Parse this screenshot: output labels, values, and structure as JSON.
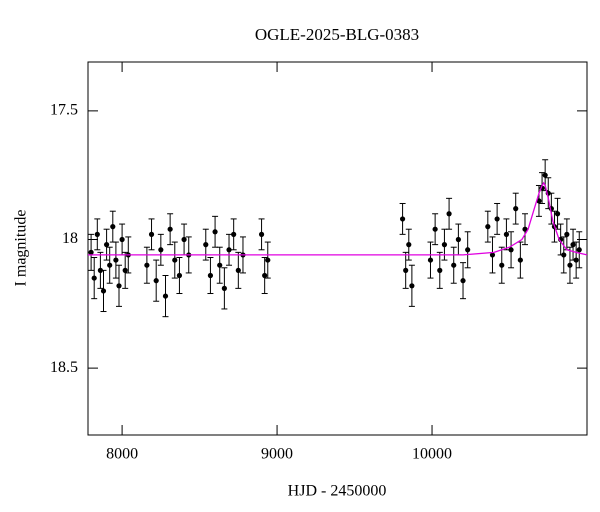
{
  "chart_data": {
    "type": "scatter",
    "title": "OGLE-2025-BLG-0383",
    "x_label": "HJD - 2450000",
    "y_label": "I magnitude",
    "xlim": [
      7780,
      11000
    ],
    "ylim": [
      18.76,
      17.31
    ],
    "y_inverted": true,
    "xticks": [
      8000,
      9000,
      10000
    ],
    "yticks": [
      17.5,
      18,
      {
        "value": 18.5,
        "label": "18.5"
      }
    ],
    "color": "#000000",
    "x": [
      7800,
      7820,
      7840,
      7860,
      7880,
      7900,
      7920,
      7940,
      7960,
      7980,
      8000,
      8020,
      8040,
      8160,
      8190,
      8220,
      8250,
      8280,
      8310,
      8340,
      8370,
      8400,
      8430,
      8540,
      8570,
      8600,
      8630,
      8660,
      8690,
      8720,
      8750,
      8780,
      8900,
      8920,
      8940,
      9810,
      9830,
      9850,
      9870,
      9990,
      10020,
      10050,
      10080,
      10110,
      10140,
      10170,
      10200,
      10230,
      10360,
      10390,
      10420,
      10450,
      10480,
      10510,
      10540,
      10570,
      10600,
      10690,
      10710,
      10730,
      10750,
      10770,
      10790,
      10810,
      10830,
      10850,
      10870,
      10890,
      10910,
      10930,
      10950
    ],
    "values": [
      18.05,
      18.15,
      17.98,
      18.12,
      18.2,
      18.02,
      18.1,
      17.95,
      18.08,
      18.18,
      18,
      18.12,
      18.06,
      18.1,
      17.98,
      18.16,
      18.04,
      18.22,
      17.96,
      18.08,
      18.14,
      18,
      18.06,
      18.02,
      18.14,
      17.97,
      18.1,
      18.19,
      18.04,
      17.98,
      18.12,
      18.06,
      17.98,
      18.14,
      18.08,
      17.92,
      18.12,
      18.02,
      18.18,
      18.08,
      17.96,
      18.12,
      18.02,
      17.9,
      18.1,
      18,
      18.16,
      18.04,
      17.95,
      18.06,
      17.92,
      18.1,
      17.98,
      18.04,
      17.88,
      18.08,
      17.96,
      17.85,
      17.8,
      17.75,
      17.82,
      17.88,
      17.95,
      17.9,
      18,
      18.06,
      17.98,
      18.1,
      18.02,
      18.08,
      18.04
    ],
    "errors": [
      0.07,
      0.08,
      0.06,
      0.07,
      0.08,
      0.06,
      0.07,
      0.06,
      0.07,
      0.08,
      0.06,
      0.07,
      0.07,
      0.07,
      0.06,
      0.08,
      0.06,
      0.08,
      0.06,
      0.07,
      0.07,
      0.06,
      0.07,
      0.06,
      0.07,
      0.06,
      0.07,
      0.08,
      0.06,
      0.06,
      0.07,
      0.07,
      0.06,
      0.07,
      0.07,
      0.06,
      0.07,
      0.06,
      0.08,
      0.07,
      0.06,
      0.07,
      0.06,
      0.06,
      0.07,
      0.06,
      0.07,
      0.07,
      0.06,
      0.07,
      0.06,
      0.07,
      0.06,
      0.07,
      0.06,
      0.07,
      0.06,
      0.06,
      0.06,
      0.06,
      0.06,
      0.06,
      0.06,
      0.06,
      0.06,
      0.07,
      0.06,
      0.07,
      0.06,
      0.07,
      0.07
    ],
    "model": {
      "type": "line",
      "color": "#e000e0",
      "x": [
        7780,
        8500,
        9500,
        10200,
        10400,
        10500,
        10580,
        10620,
        10660,
        10690,
        10710,
        10720,
        10730,
        10750,
        10780,
        10820,
        10870,
        10930,
        11000
      ],
      "values": [
        18.06,
        18.06,
        18.06,
        18.06,
        18.05,
        18.03,
        18,
        17.96,
        17.88,
        17.82,
        17.79,
        17.78,
        17.79,
        17.84,
        17.93,
        18,
        18.04,
        18.05,
        18.06
      ]
    }
  }
}
